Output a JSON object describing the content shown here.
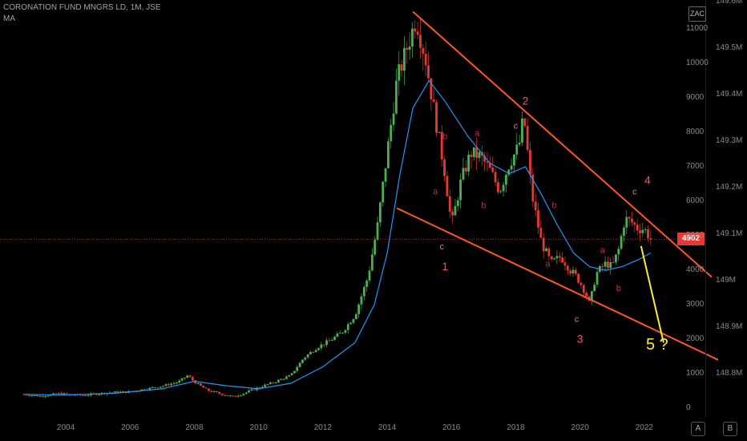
{
  "header": {
    "title": "CORONATION FUND MNGRS LD, 1M, JSE",
    "indicator": "MA"
  },
  "currency_badge": "ZAC",
  "price_label": "4902",
  "left_axis": {
    "ticks": [
      "11000",
      "10000",
      "9000",
      "8000",
      "7000",
      "6000",
      "5000",
      "4000",
      "3000",
      "2000",
      "1000",
      "0"
    ]
  },
  "right_axis": {
    "ticks": [
      "149.6M",
      "149.5M",
      "149.4M",
      "149.3M",
      "149.2M",
      "149.1M",
      "149M",
      "148.9M",
      "148.8M"
    ]
  },
  "x_axis": {
    "ticks": [
      "2004",
      "2006",
      "2008",
      "2010",
      "2012",
      "2014",
      "2016",
      "2018",
      "2020",
      "2022"
    ]
  },
  "corner_buttons": {
    "auto": "A",
    "log": "B"
  },
  "wave_labels": [
    {
      "text": "2",
      "color": "#ff5252",
      "size": 14
    },
    {
      "text": "c",
      "color": "#e57373",
      "size": 11
    },
    {
      "text": "b",
      "color": "#d81b60",
      "size": 11
    },
    {
      "text": "a",
      "color": "#d81b60",
      "size": 11
    },
    {
      "text": "a",
      "color": "#d81b60",
      "size": 11
    },
    {
      "text": "b",
      "color": "#d81b60",
      "size": 11
    },
    {
      "text": "c",
      "color": "#e57373",
      "size": 11
    },
    {
      "text": "1",
      "color": "#ff5252",
      "size": 14
    },
    {
      "text": "b",
      "color": "#d81b60",
      "size": 11
    },
    {
      "text": "a",
      "color": "#d81b60",
      "size": 11
    },
    {
      "text": "a",
      "color": "#d81b60",
      "size": 11
    },
    {
      "text": "b",
      "color": "#d81b60",
      "size": 11
    },
    {
      "text": "c",
      "color": "#e57373",
      "size": 11
    },
    {
      "text": "3",
      "color": "#ff5252",
      "size": 14
    },
    {
      "text": "c",
      "color": "#e57373",
      "size": 11
    },
    {
      "text": "4",
      "color": "#ff5252",
      "size": 14
    },
    {
      "text": "5 ?",
      "color": "#ffeb3b",
      "size": 20
    }
  ],
  "chart_data": {
    "type": "candlestick",
    "title": "CORONATION FUND MNGRS LD, 1M, JSE",
    "ylim": [
      0,
      11500
    ],
    "xlim": [
      2002.5,
      2024.5
    ],
    "last_price": 4902,
    "colors": {
      "up": "#4caf50",
      "down": "#e53935",
      "ma": "#2196f3",
      "channel": "#ff5722",
      "projection": "#ffeb3b"
    },
    "price_path": [
      [
        2002.7,
        400
      ],
      [
        2003.2,
        350
      ],
      [
        2003.8,
        420
      ],
      [
        2004.5,
        370
      ],
      [
        2005.0,
        420
      ],
      [
        2005.5,
        460
      ],
      [
        2006.0,
        470
      ],
      [
        2006.5,
        560
      ],
      [
        2007.0,
        640
      ],
      [
        2007.5,
        760
      ],
      [
        2007.8,
        950
      ],
      [
        2008.0,
        760
      ],
      [
        2008.4,
        520
      ],
      [
        2008.8,
        420
      ],
      [
        2009.2,
        330
      ],
      [
        2009.6,
        450
      ],
      [
        2010.0,
        600
      ],
      [
        2010.5,
        760
      ],
      [
        2011.0,
        950
      ],
      [
        2011.4,
        1450
      ],
      [
        2011.8,
        1750
      ],
      [
        2012.2,
        1950
      ],
      [
        2012.6,
        2200
      ],
      [
        2013.0,
        2700
      ],
      [
        2013.4,
        3800
      ],
      [
        2013.7,
        5300
      ],
      [
        2014.0,
        7400
      ],
      [
        2014.3,
        9500
      ],
      [
        2014.6,
        10400
      ],
      [
        2014.9,
        11300
      ],
      [
        2015.2,
        10100
      ],
      [
        2015.5,
        8400
      ],
      [
        2015.8,
        6800
      ],
      [
        2016.0,
        5300
      ],
      [
        2016.3,
        6600
      ],
      [
        2016.6,
        7400
      ],
      [
        2016.9,
        7300
      ],
      [
        2017.2,
        6900
      ],
      [
        2017.5,
        6300
      ],
      [
        2017.8,
        7100
      ],
      [
        2018.1,
        7600
      ],
      [
        2018.25,
        8500
      ],
      [
        2018.5,
        6200
      ],
      [
        2018.8,
        4800
      ],
      [
        2019.1,
        4200
      ],
      [
        2019.4,
        4400
      ],
      [
        2019.7,
        4000
      ],
      [
        2019.9,
        3800
      ],
      [
        2020.15,
        3400
      ],
      [
        2020.3,
        3000
      ],
      [
        2020.5,
        3900
      ],
      [
        2020.8,
        4200
      ],
      [
        2021.0,
        4100
      ],
      [
        2021.2,
        4600
      ],
      [
        2021.4,
        5500
      ],
      [
        2021.6,
        5400
      ],
      [
        2021.8,
        5200
      ],
      [
        2022.0,
        5200
      ],
      [
        2022.2,
        4902
      ]
    ],
    "moving_average": [
      [
        2002.7,
        400
      ],
      [
        2004.0,
        380
      ],
      [
        2005.5,
        430
      ],
      [
        2007.0,
        560
      ],
      [
        2008.0,
        780
      ],
      [
        2009.0,
        650
      ],
      [
        2010.0,
        560
      ],
      [
        2011.0,
        720
      ],
      [
        2012.0,
        1200
      ],
      [
        2013.0,
        1900
      ],
      [
        2013.6,
        3000
      ],
      [
        2014.0,
        4500
      ],
      [
        2014.4,
        6800
      ],
      [
        2014.8,
        8700
      ],
      [
        2015.3,
        9500
      ],
      [
        2015.8,
        8900
      ],
      [
        2016.5,
        7900
      ],
      [
        2017.2,
        7100
      ],
      [
        2017.8,
        6800
      ],
      [
        2018.3,
        7000
      ],
      [
        2018.8,
        6200
      ],
      [
        2019.3,
        5300
      ],
      [
        2019.8,
        4500
      ],
      [
        2020.3,
        4100
      ],
      [
        2020.8,
        4000
      ],
      [
        2021.3,
        4100
      ],
      [
        2021.8,
        4300
      ],
      [
        2022.2,
        4500
      ]
    ],
    "annotations": {
      "upper_channel": [
        [
          2014.8,
          11500
        ],
        [
          2024.1,
          3800
        ]
      ],
      "lower_channel": [
        [
          2014.3,
          5800
        ],
        [
          2024.3,
          1400
        ]
      ],
      "projection": [
        [
          2021.9,
          4700
        ],
        [
          2022.6,
          1900
        ]
      ],
      "last_price_line": 4902,
      "wave_points": [
        [
          2018.3,
          8800
        ],
        [
          2018.0,
          8100
        ],
        [
          2015.8,
          7800
        ],
        [
          2016.8,
          7900
        ],
        [
          2015.5,
          6200
        ],
        [
          2017.0,
          5800
        ],
        [
          2015.7,
          4600
        ],
        [
          2015.8,
          4000
        ],
        [
          2019.2,
          5800
        ],
        [
          2019.0,
          4100
        ],
        [
          2020.7,
          4500
        ],
        [
          2021.2,
          3400
        ],
        [
          2019.9,
          2500
        ],
        [
          2020.0,
          1900
        ],
        [
          2021.7,
          6200
        ],
        [
          2022.1,
          6500
        ],
        [
          2022.4,
          1700
        ]
      ]
    }
  }
}
